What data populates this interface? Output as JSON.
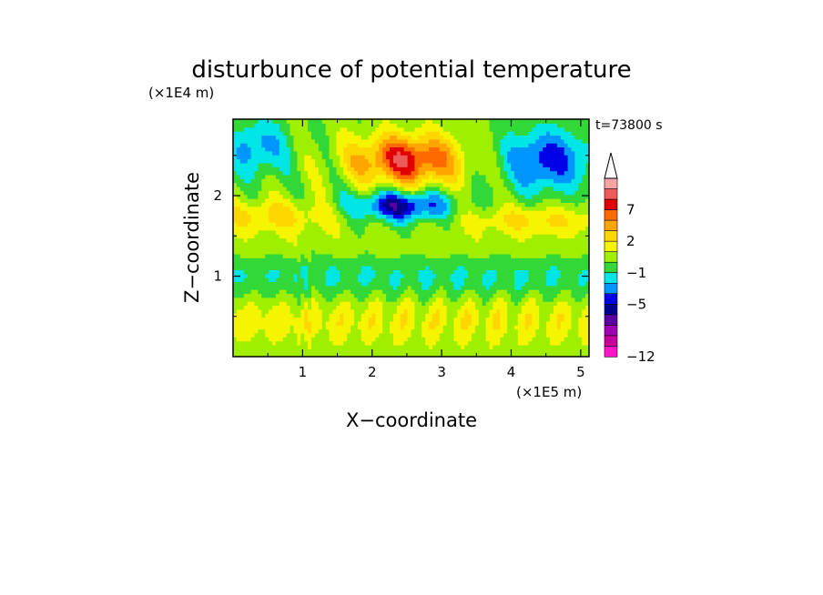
{
  "chart_data": {
    "type": "heatmap",
    "title": "disturbunce of potential temperature",
    "time_label": "t=73800 s",
    "xlabel": "X−coordinate",
    "ylabel": "Z−coordinate",
    "x_unit": "(×1E5 m)",
    "y_unit": "(×1E4 m)",
    "xlim": [
      0,
      5.12
    ],
    "ylim": [
      0,
      2.95
    ],
    "x_ticks": [
      "1",
      "2",
      "3",
      "4",
      "5"
    ],
    "y_ticks": [
      "1",
      "2"
    ],
    "x_tick_values": [
      1,
      2,
      3,
      4,
      5
    ],
    "y_tick_values": [
      1,
      2
    ],
    "colorbar": {
      "labels": [
        "7",
        "2",
        "−1",
        "−5",
        "−12"
      ],
      "label_values": [
        7,
        2,
        -1,
        -5,
        -12
      ],
      "colors_top_to_bottom": [
        "#f6a5a5",
        "#ee5a5a",
        "#e00000",
        "#ff6a00",
        "#ffa500",
        "#ffd700",
        "#f5f500",
        "#a0ee00",
        "#32d838",
        "#00e6e6",
        "#0096ff",
        "#0000e6",
        "#000090",
        "#5a00a0",
        "#a000b4",
        "#c8009b",
        "#ff14c8"
      ],
      "extend_max": true
    },
    "features": [
      {
        "name": "warm_core",
        "x": 2.5,
        "z": 2.45,
        "value": 7
      },
      {
        "name": "cold_anomaly_center",
        "x": 2.4,
        "z": 1.85,
        "value": -5
      },
      {
        "name": "cold_anomaly_upper_right",
        "x": 4.5,
        "z": 2.45,
        "value": -4
      },
      {
        "name": "warm_band_upper_left",
        "x": 0.6,
        "z": 1.75,
        "value": 3
      },
      {
        "name": "warm_band_upper_right",
        "x": 4.4,
        "z": 1.7,
        "value": 3
      },
      {
        "name": "cool_layer",
        "x": 2.5,
        "z": 1.0,
        "value": -1
      },
      {
        "name": "warm_layer_low",
        "x": 2.5,
        "z": 0.45,
        "value": 2
      }
    ]
  }
}
